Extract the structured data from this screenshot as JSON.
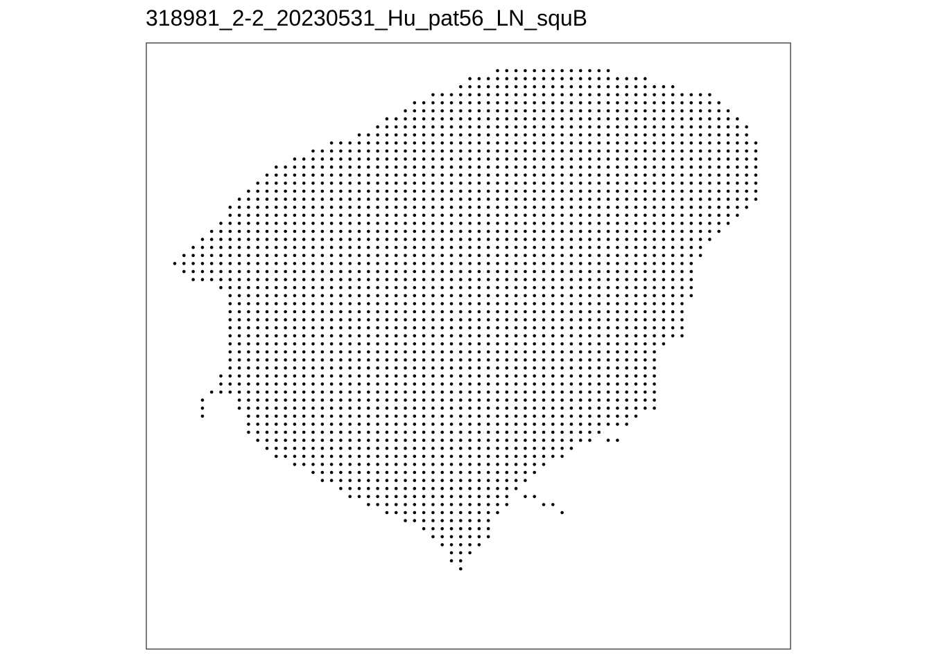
{
  "chart_data": {
    "type": "scatter",
    "title": "318981_2-2_20230531_Hu_pat56_LN_squB",
    "xlabel": "",
    "ylabel": "",
    "axes_visible": false,
    "grid": false,
    "legend": "none",
    "point_color": "#000000",
    "frame_color": "#333333",
    "description_units": "spots on a hexagonal grid; x = column index (0-65), y = row index (0-63), row 0 at top",
    "xlim": [
      0,
      65
    ],
    "ylim": [
      0,
      63
    ],
    "rows": [
      {
        "y": 0,
        "x_ranges": [
          [
            35,
            47
          ]
        ]
      },
      {
        "y": 1,
        "x_ranges": [
          [
            32,
            51
          ]
        ]
      },
      {
        "y": 2,
        "x_ranges": [
          [
            31,
            54
          ]
        ]
      },
      {
        "y": 3,
        "x_ranges": [
          [
            28,
            58
          ]
        ]
      },
      {
        "y": 4,
        "x_ranges": [
          [
            26,
            59
          ]
        ]
      },
      {
        "y": 5,
        "x_ranges": [
          [
            25,
            60
          ]
        ]
      },
      {
        "y": 6,
        "x_ranges": [
          [
            23,
            61
          ]
        ]
      },
      {
        "y": 7,
        "x_ranges": [
          [
            22,
            62
          ]
        ]
      },
      {
        "y": 8,
        "x_ranges": [
          [
            20,
            62
          ]
        ]
      },
      {
        "y": 9,
        "x_ranges": [
          [
            17,
            63
          ]
        ]
      },
      {
        "y": 10,
        "x_ranges": [
          [
            15,
            63
          ]
        ]
      },
      {
        "y": 11,
        "x_ranges": [
          [
            13,
            63
          ]
        ]
      },
      {
        "y": 12,
        "x_ranges": [
          [
            11,
            63
          ]
        ]
      },
      {
        "y": 13,
        "x_ranges": [
          [
            10,
            63
          ]
        ]
      },
      {
        "y": 14,
        "x_ranges": [
          [
            9,
            63
          ]
        ]
      },
      {
        "y": 15,
        "x_ranges": [
          [
            8,
            63
          ]
        ]
      },
      {
        "y": 16,
        "x_ranges": [
          [
            7,
            63
          ]
        ]
      },
      {
        "y": 17,
        "x_ranges": [
          [
            6,
            62
          ]
        ]
      },
      {
        "y": 18,
        "x_ranges": [
          [
            6,
            61
          ]
        ]
      },
      {
        "y": 19,
        "x_ranges": [
          [
            5,
            60
          ]
        ]
      },
      {
        "y": 20,
        "x_ranges": [
          [
            4,
            59
          ]
        ]
      },
      {
        "y": 21,
        "x_ranges": [
          [
            3,
            58
          ]
        ]
      },
      {
        "y": 22,
        "x_ranges": [
          [
            2,
            57
          ]
        ]
      },
      {
        "y": 23,
        "x_ranges": [
          [
            1,
            57
          ]
        ]
      },
      {
        "y": 24,
        "x_ranges": [
          [
            0,
            56
          ]
        ]
      },
      {
        "y": 25,
        "x_ranges": [
          [
            1,
            56
          ]
        ]
      },
      {
        "y": 26,
        "x_ranges": [
          [
            2,
            56
          ]
        ]
      },
      {
        "y": 27,
        "x_ranges": [
          [
            5,
            56
          ]
        ]
      },
      {
        "y": 28,
        "x_ranges": [
          [
            6,
            56
          ]
        ]
      },
      {
        "y": 29,
        "x_ranges": [
          [
            6,
            55
          ]
        ]
      },
      {
        "y": 30,
        "x_ranges": [
          [
            6,
            55
          ]
        ]
      },
      {
        "y": 31,
        "x_ranges": [
          [
            6,
            55
          ]
        ]
      },
      {
        "y": 32,
        "x_ranges": [
          [
            6,
            55
          ]
        ]
      },
      {
        "y": 33,
        "x_ranges": [
          [
            6,
            55
          ]
        ]
      },
      {
        "y": 34,
        "x_ranges": [
          [
            6,
            53
          ]
        ]
      },
      {
        "y": 35,
        "x_ranges": [
          [
            6,
            52
          ]
        ]
      },
      {
        "y": 36,
        "x_ranges": [
          [
            6,
            52
          ]
        ]
      },
      {
        "y": 37,
        "x_ranges": [
          [
            6,
            52
          ]
        ]
      },
      {
        "y": 38,
        "x_ranges": [
          [
            5,
            52
          ]
        ]
      },
      {
        "y": 39,
        "x_ranges": [
          [
            5,
            52
          ]
        ]
      },
      {
        "y": 40,
        "x_ranges": [
          [
            4,
            52
          ]
        ]
      },
      {
        "y": 41,
        "x_ranges": [
          [
            3,
            3
          ],
          [
            7,
            52
          ]
        ]
      },
      {
        "y": 42,
        "x_ranges": [
          [
            3,
            3
          ],
          [
            7,
            52
          ]
        ]
      },
      {
        "y": 43,
        "x_ranges": [
          [
            3,
            3
          ],
          [
            8,
            50
          ]
        ]
      },
      {
        "y": 44,
        "x_ranges": [
          [
            8,
            49
          ]
        ]
      },
      {
        "y": 45,
        "x_ranges": [
          [
            8,
            46
          ]
        ]
      },
      {
        "y": 46,
        "x_ranges": [
          [
            9,
            45
          ],
          [
            47,
            48
          ]
        ]
      },
      {
        "y": 47,
        "x_ranges": [
          [
            10,
            43
          ]
        ]
      },
      {
        "y": 48,
        "x_ranges": [
          [
            11,
            42
          ]
        ]
      },
      {
        "y": 49,
        "x_ranges": [
          [
            13,
            40
          ]
        ]
      },
      {
        "y": 50,
        "x_ranges": [
          [
            15,
            39
          ]
        ]
      },
      {
        "y": 51,
        "x_ranges": [
          [
            16,
            38
          ]
        ]
      },
      {
        "y": 52,
        "x_ranges": [
          [
            18,
            37
          ]
        ]
      },
      {
        "y": 53,
        "x_ranges": [
          [
            19,
            36
          ],
          [
            38,
            39
          ]
        ]
      },
      {
        "y": 54,
        "x_ranges": [
          [
            21,
            36
          ],
          [
            40,
            41
          ]
        ]
      },
      {
        "y": 55,
        "x_ranges": [
          [
            23,
            35
          ],
          [
            42,
            42
          ]
        ]
      },
      {
        "y": 56,
        "x_ranges": [
          [
            25,
            34
          ]
        ]
      },
      {
        "y": 57,
        "x_ranges": [
          [
            27,
            34
          ]
        ]
      },
      {
        "y": 58,
        "x_ranges": [
          [
            28,
            34
          ]
        ]
      },
      {
        "y": 59,
        "x_ranges": [
          [
            29,
            33
          ]
        ]
      },
      {
        "y": 60,
        "x_ranges": [
          [
            30,
            32
          ]
        ]
      },
      {
        "y": 61,
        "x_ranges": [
          [
            30,
            31
          ]
        ]
      },
      {
        "y": 62,
        "x_ranges": [
          [
            31,
            31
          ]
        ]
      }
    ]
  }
}
